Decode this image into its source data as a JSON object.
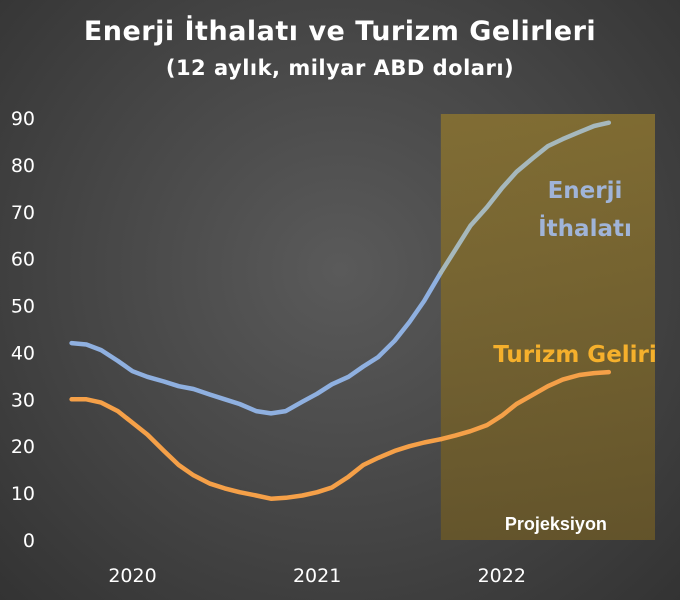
{
  "chart_data": {
    "type": "line",
    "title": "Enerji İthalatı ve Turizm Gelirleri",
    "subtitle": "(12 aylık, milyar ABD doları)",
    "xlabel": "",
    "ylabel": "",
    "ylim": [
      0,
      90
    ],
    "yticks": [
      "0",
      "10",
      "20",
      "30",
      "40",
      "50",
      "60",
      "70",
      "80",
      "90"
    ],
    "xlim": [
      2019.58,
      2022.83
    ],
    "xticks": [
      {
        "label": "2020",
        "x": 2020.0
      },
      {
        "label": "2021",
        "x": 2021.0
      },
      {
        "label": "2022",
        "x": 2022.0
      }
    ],
    "grid": false,
    "projection": {
      "label": "Projeksiyon",
      "from": 2021.67,
      "to": 2022.83,
      "color": "#8a7330"
    },
    "series": [
      {
        "name": "Enerji İthalatı",
        "label_lines": [
          "Enerji",
          "İthalatı"
        ],
        "color": "#8fb0e0",
        "projection_color": "#a6b8bc",
        "label_color": "#a0b4d8",
        "points": [
          [
            2019.67,
            42.0
          ],
          [
            2019.75,
            41.7
          ],
          [
            2019.83,
            40.5
          ],
          [
            2019.92,
            38.2
          ],
          [
            2020.0,
            36.0
          ],
          [
            2020.08,
            34.8
          ],
          [
            2020.17,
            33.8
          ],
          [
            2020.25,
            32.8
          ],
          [
            2020.33,
            32.2
          ],
          [
            2020.42,
            31.0
          ],
          [
            2020.5,
            30.0
          ],
          [
            2020.58,
            29.0
          ],
          [
            2020.67,
            27.5
          ],
          [
            2020.75,
            27.0
          ],
          [
            2020.83,
            27.5
          ],
          [
            2020.92,
            29.5
          ],
          [
            2021.0,
            31.2
          ],
          [
            2021.08,
            33.2
          ],
          [
            2021.17,
            34.8
          ],
          [
            2021.25,
            37.0
          ],
          [
            2021.33,
            39.0
          ],
          [
            2021.42,
            42.5
          ],
          [
            2021.5,
            46.5
          ],
          [
            2021.58,
            51.0
          ],
          [
            2021.67,
            57.0
          ],
          [
            2021.75,
            62.0
          ],
          [
            2021.83,
            67.0
          ],
          [
            2021.92,
            71.0
          ],
          [
            2022.0,
            75.0
          ],
          [
            2022.08,
            78.5
          ],
          [
            2022.17,
            81.5
          ],
          [
            2022.25,
            84.0
          ],
          [
            2022.33,
            85.5
          ],
          [
            2022.42,
            87.0
          ],
          [
            2022.5,
            88.3
          ],
          [
            2022.58,
            89.0
          ]
        ]
      },
      {
        "name": "Turizm Geliri",
        "label_lines": [
          "Turizm Geliri"
        ],
        "color": "#f5a048",
        "projection_color": "#f5a048",
        "label_color": "#f5b02c",
        "points": [
          [
            2019.67,
            30.0
          ],
          [
            2019.75,
            30.0
          ],
          [
            2019.83,
            29.3
          ],
          [
            2019.92,
            27.5
          ],
          [
            2020.0,
            25.0
          ],
          [
            2020.08,
            22.5
          ],
          [
            2020.17,
            19.0
          ],
          [
            2020.25,
            16.0
          ],
          [
            2020.33,
            13.8
          ],
          [
            2020.42,
            12.0
          ],
          [
            2020.5,
            11.0
          ],
          [
            2020.58,
            10.2
          ],
          [
            2020.67,
            9.5
          ],
          [
            2020.75,
            8.8
          ],
          [
            2020.83,
            9.0
          ],
          [
            2020.92,
            9.5
          ],
          [
            2021.0,
            10.2
          ],
          [
            2021.08,
            11.2
          ],
          [
            2021.17,
            13.5
          ],
          [
            2021.25,
            16.0
          ],
          [
            2021.33,
            17.5
          ],
          [
            2021.42,
            19.0
          ],
          [
            2021.5,
            20.0
          ],
          [
            2021.58,
            20.8
          ],
          [
            2021.67,
            21.5
          ],
          [
            2021.75,
            22.3
          ],
          [
            2021.83,
            23.2
          ],
          [
            2021.92,
            24.5
          ],
          [
            2022.0,
            26.5
          ],
          [
            2022.08,
            29.0
          ],
          [
            2022.17,
            31.0
          ],
          [
            2022.25,
            32.8
          ],
          [
            2022.33,
            34.2
          ],
          [
            2022.42,
            35.2
          ],
          [
            2022.5,
            35.6
          ],
          [
            2022.58,
            35.8
          ]
        ]
      }
    ]
  }
}
